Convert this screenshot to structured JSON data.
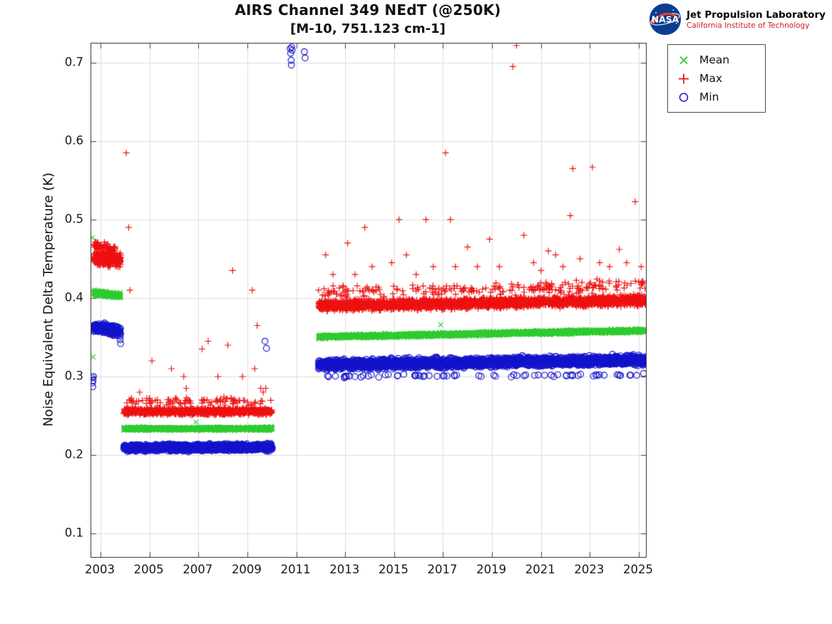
{
  "branding": {
    "nasa": "NASA",
    "jpl": "Jet Propulsion Laboratory",
    "caltech": "California Institute of Technology"
  },
  "chart_data": {
    "type": "scatter",
    "title": "AIRS Channel 349 NEdT (@250K)",
    "subtitle": "[M-10, 751.123 cm-1]",
    "xlabel": "",
    "ylabel": "Noise Equivalent Delta Temperature (K)",
    "xlim": [
      2002.62,
      2025.29
    ],
    "ylim": [
      0.07,
      0.7245
    ],
    "xticks": [
      2003,
      2005,
      2007,
      2009,
      2011,
      2013,
      2015,
      2017,
      2019,
      2021,
      2023,
      2025
    ],
    "yticks": [
      0.1,
      0.2,
      0.3,
      0.4,
      0.5,
      0.6,
      0.7
    ],
    "grid": true,
    "legend": {
      "position": "top-right",
      "entries": [
        {
          "label": "Mean",
          "marker": "x",
          "color": "#2fcc2f"
        },
        {
          "label": "Max",
          "marker": "+",
          "color": "#ee1111"
        },
        {
          "label": "Min",
          "marker": "o",
          "color": "#1414cc"
        }
      ]
    },
    "series": [
      {
        "name": "Mean",
        "marker": "x",
        "color": "#2fcc2f",
        "bands": [
          {
            "x0": 2002.72,
            "x1": 2003.82,
            "y0": 0.406,
            "y1": 0.403,
            "spread": 0.005,
            "n": 280
          },
          {
            "x0": 2003.95,
            "x1": 2010.02,
            "y0": 0.2335,
            "y1": 0.2335,
            "spread": 0.003,
            "n": 1200
          },
          {
            "x0": 2011.9,
            "x1": 2025.29,
            "y0": 0.3505,
            "y1": 0.3585,
            "spread": 0.0035,
            "n": 2600
          }
        ],
        "outliers": [
          [
            2002.67,
            0.477
          ],
          [
            2002.7,
            0.325
          ],
          [
            2006.9,
            0.242
          ],
          [
            2016.9,
            0.366
          ]
        ]
      },
      {
        "name": "Max",
        "marker": "+",
        "color": "#ee1111",
        "bands": [
          {
            "x0": 2002.72,
            "x1": 2003.82,
            "y0": 0.451,
            "y1": 0.449,
            "spread": 0.012,
            "n": 280
          },
          {
            "x0": 2002.72,
            "x1": 2003.6,
            "y0": 0.468,
            "y1": 0.462,
            "spread": 0.008,
            "n": 70
          },
          {
            "x0": 2003.95,
            "x1": 2010.02,
            "y0": 0.2555,
            "y1": 0.2555,
            "spread": 0.0055,
            "n": 1200
          },
          {
            "x0": 2004.0,
            "x1": 2010.0,
            "y0": 0.268,
            "y1": 0.268,
            "spread": 0.007,
            "n": 90
          },
          {
            "x0": 2011.9,
            "x1": 2025.29,
            "y0": 0.39,
            "y1": 0.397,
            "spread": 0.009,
            "n": 2600
          },
          {
            "x0": 2011.9,
            "x1": 2025.29,
            "y0": 0.408,
            "y1": 0.416,
            "spread": 0.012,
            "n": 220
          }
        ],
        "outliers": [
          [
            2004.05,
            0.585
          ],
          [
            2004.15,
            0.49
          ],
          [
            2004.2,
            0.41
          ],
          [
            2004.6,
            0.28
          ],
          [
            2005.1,
            0.32
          ],
          [
            2005.9,
            0.31
          ],
          [
            2006.4,
            0.3
          ],
          [
            2006.5,
            0.285
          ],
          [
            2007.15,
            0.335
          ],
          [
            2007.4,
            0.345
          ],
          [
            2007.8,
            0.3
          ],
          [
            2008.2,
            0.34
          ],
          [
            2008.4,
            0.435
          ],
          [
            2008.8,
            0.3
          ],
          [
            2009.2,
            0.41
          ],
          [
            2009.3,
            0.31
          ],
          [
            2009.4,
            0.365
          ],
          [
            2009.55,
            0.285
          ],
          [
            2009.65,
            0.28
          ],
          [
            2009.75,
            0.285
          ],
          [
            2012.2,
            0.455
          ],
          [
            2012.5,
            0.43
          ],
          [
            2013.1,
            0.47
          ],
          [
            2013.4,
            0.43
          ],
          [
            2013.8,
            0.49
          ],
          [
            2014.1,
            0.44
          ],
          [
            2014.9,
            0.445
          ],
          [
            2015.2,
            0.5
          ],
          [
            2015.5,
            0.455
          ],
          [
            2015.9,
            0.43
          ],
          [
            2016.3,
            0.5
          ],
          [
            2016.6,
            0.44
          ],
          [
            2017.1,
            0.585
          ],
          [
            2017.3,
            0.5
          ],
          [
            2017.5,
            0.44
          ],
          [
            2018.0,
            0.465
          ],
          [
            2018.4,
            0.44
          ],
          [
            2018.9,
            0.475
          ],
          [
            2019.3,
            0.44
          ],
          [
            2019.85,
            0.695
          ],
          [
            2020.0,
            0.722
          ],
          [
            2020.3,
            0.48
          ],
          [
            2020.7,
            0.445
          ],
          [
            2021.0,
            0.435
          ],
          [
            2021.3,
            0.46
          ],
          [
            2021.6,
            0.455
          ],
          [
            2021.9,
            0.44
          ],
          [
            2022.2,
            0.505
          ],
          [
            2022.3,
            0.565
          ],
          [
            2022.6,
            0.45
          ],
          [
            2023.1,
            0.567
          ],
          [
            2023.4,
            0.445
          ],
          [
            2023.8,
            0.44
          ],
          [
            2024.2,
            0.462
          ],
          [
            2024.5,
            0.445
          ],
          [
            2024.85,
            0.523
          ],
          [
            2025.1,
            0.44
          ]
        ]
      },
      {
        "name": "Min",
        "marker": "o",
        "color": "#1414cc",
        "bands": [
          {
            "x0": 2002.72,
            "x1": 2003.82,
            "y0": 0.363,
            "y1": 0.357,
            "spread": 0.008,
            "n": 280
          },
          {
            "x0": 2003.95,
            "x1": 2010.02,
            "y0": 0.209,
            "y1": 0.21,
            "spread": 0.006,
            "n": 1200
          },
          {
            "x0": 2011.9,
            "x1": 2025.29,
            "y0": 0.315,
            "y1": 0.321,
            "spread": 0.0085,
            "n": 2600
          },
          {
            "x0": 2011.95,
            "x1": 2025.2,
            "y0": 0.3,
            "y1": 0.302,
            "spread": 0.003,
            "n": 70
          }
        ],
        "outliers": [
          [
            2002.66,
            0.298
          ],
          [
            2002.67,
            0.292
          ],
          [
            2002.68,
            0.287
          ],
          [
            2002.69,
            0.295
          ],
          [
            2002.71,
            0.3
          ],
          [
            2003.8,
            0.347
          ],
          [
            2003.82,
            0.342
          ],
          [
            2009.72,
            0.345
          ],
          [
            2009.78,
            0.336
          ],
          [
            2010.75,
            0.718
          ],
          [
            2010.77,
            0.712
          ],
          [
            2010.79,
            0.703
          ],
          [
            2010.8,
            0.697
          ],
          [
            2010.81,
            0.72
          ],
          [
            2010.83,
            0.716
          ],
          [
            2011.33,
            0.714
          ],
          [
            2011.36,
            0.706
          ]
        ]
      }
    ]
  }
}
